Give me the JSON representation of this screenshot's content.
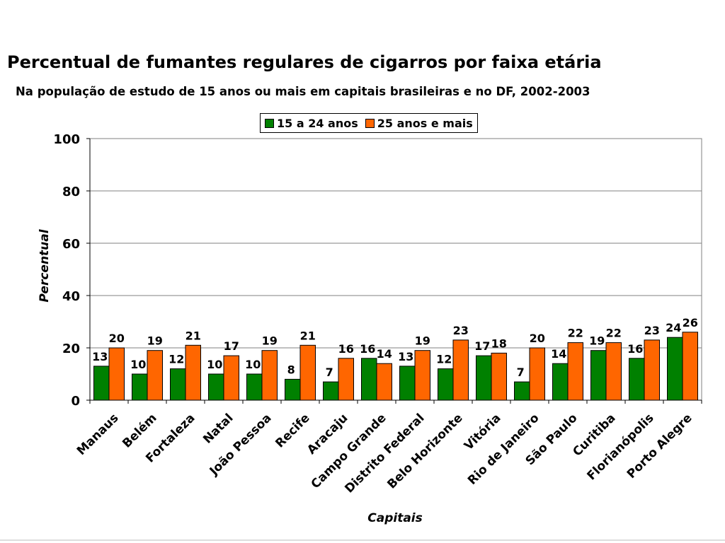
{
  "header": {
    "title": "Percentual de fumantes regulares de cigarros por faixa etária",
    "subtitle": "Na população de estudo de 15 anos ou mais em capitais brasileiras e no DF, 2002-2003"
  },
  "colors": {
    "series1": "#008000",
    "series2": "#FF6600",
    "grid": "#808080"
  },
  "chart_data": {
    "type": "bar",
    "categories": [
      "Manaus",
      "Belém",
      "Fortaleza",
      "Natal",
      "João Pessoa",
      "Recife",
      "Aracaju",
      "Campo Grande",
      "Distrito Federal",
      "Belo Horizonte",
      "Vitória",
      "Rio de Janeiro",
      "São Paulo",
      "Curitiba",
      "Florianópolis",
      "Porto Alegre"
    ],
    "series": [
      {
        "name": "15 a 24 anos",
        "values": [
          13,
          10,
          12,
          10,
          10,
          8,
          7,
          16,
          13,
          12,
          17,
          7,
          14,
          19,
          16,
          24
        ]
      },
      {
        "name": "25 anos e mais",
        "values": [
          20,
          19,
          21,
          17,
          19,
          21,
          16,
          14,
          19,
          23,
          18,
          20,
          22,
          22,
          23,
          26
        ]
      }
    ],
    "xlabel": "Capitais",
    "ylabel": "Percentual",
    "ylim": [
      0,
      100
    ],
    "yticks": [
      "0",
      "20",
      "40",
      "60",
      "80",
      "100"
    ],
    "grid": true,
    "legend": "top-center"
  }
}
